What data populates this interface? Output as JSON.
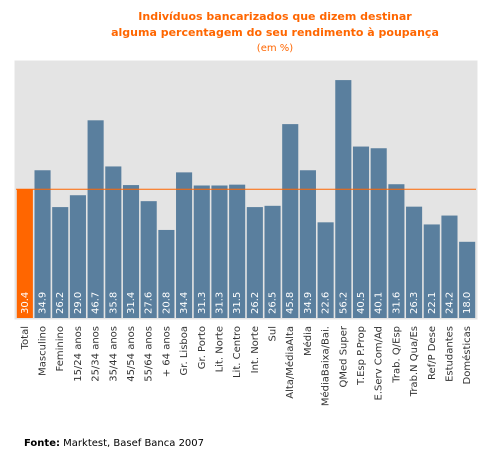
{
  "chart_data": {
    "type": "bar",
    "title": [
      "Indivíduos bancarizados que dizem destinar",
      "alguma percentagem do seu rendimento à poupança"
    ],
    "subtitle": "(em %)",
    "categories": [
      "Total",
      "Masculino",
      "Feminino",
      "15/24 anos",
      "25/34 anos",
      "35/44 anos",
      "45/54 anos",
      "55/64 anos",
      "+ 64 anos",
      "Gr. Lisboa",
      "Gr. Porto",
      "Lit. Norte",
      "Lit. Centro",
      "Int. Norte",
      "Sul",
      "Alta/MédiaAlta",
      "Média",
      "MédiaBaixa/Bai.",
      "QMed Super",
      "T.Esp P.Prop",
      "E.Serv Com/Ad",
      "Trab. Q/Esp",
      "Trab.N Qua/Es",
      "Ref/P Dese",
      "Estudantes",
      "Domésticas"
    ],
    "values": [
      30.4,
      34.9,
      26.2,
      29.0,
      46.7,
      35.8,
      31.4,
      27.6,
      20.8,
      34.4,
      31.3,
      31.3,
      31.5,
      26.2,
      26.5,
      45.8,
      34.9,
      22.6,
      56.2,
      40.5,
      40.1,
      31.6,
      26.3,
      22.1,
      24.2,
      18.0
    ],
    "value_labels": [
      "30.4",
      "34.9",
      "26.2",
      "29.0",
      "46.7",
      "35.8",
      "31.4",
      "27.6",
      "20.8",
      "34.4",
      "31.3",
      "31.3",
      "31.5",
      "26.2",
      "26.5",
      "45.8",
      "34.9",
      "22.6",
      "56.2",
      "40.5",
      "40.1",
      "31.6",
      "26.3",
      "22.1",
      "24.2",
      "18.0"
    ],
    "color": "#5a7f9e",
    "highlight_color": "#ff6600",
    "ylim": [
      0,
      60
    ],
    "source_label": "Fonte:",
    "source": "Marktest, Basef Banca 2007"
  }
}
